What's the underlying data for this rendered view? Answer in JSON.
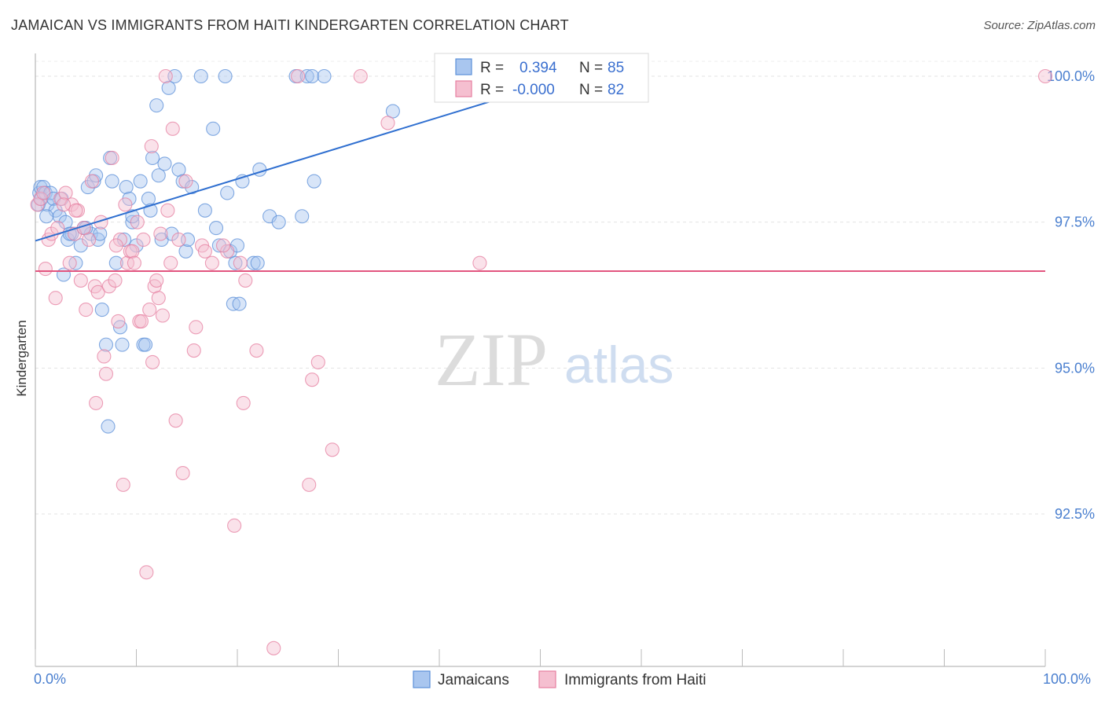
{
  "header": {
    "title": "JAMAICAN VS IMMIGRANTS FROM HAITI KINDERGARTEN CORRELATION CHART",
    "source": "Source: ZipAtlas.com"
  },
  "watermark": {
    "zip": "ZIP",
    "atlas": "atlas"
  },
  "chart_data": {
    "type": "scatter",
    "title": "JAMAICAN VS IMMIGRANTS FROM HAITI KINDERGARTEN CORRELATION CHART",
    "xlabel": "",
    "ylabel": "Kindergarten",
    "xlim": [
      0,
      100
    ],
    "ylim": [
      90.2,
      100.35
    ],
    "x_tick_labels": [
      "0.0%",
      "100.0%"
    ],
    "y_ticks": [
      {
        "value": 100.0,
        "label": "100.0%"
      },
      {
        "value": 97.5,
        "label": "97.5%"
      },
      {
        "value": 95.0,
        "label": "95.0%"
      },
      {
        "value": 92.5,
        "label": "92.5%"
      }
    ],
    "legend": {
      "r_label": "R =",
      "n_label": "N =",
      "entries": [
        {
          "name": "Jamaicans",
          "r": "0.394",
          "n": "85",
          "color": "#5b8fd8",
          "fill": "#a9c6ef"
        },
        {
          "name": "Immigrants from Haiti",
          "r": "-0.000",
          "n": "82",
          "color": "#e67fa0",
          "fill": "#f5bfd0"
        }
      ]
    },
    "series": [
      {
        "name": "Jamaicans",
        "color": "#5b8fd8",
        "fill": "#a9c6ef",
        "trend": {
          "x": [
            0,
            48.5
          ],
          "y": [
            97.18,
            99.75
          ]
        },
        "points": [
          [
            0.4,
            98.0
          ],
          [
            0.5,
            98.1
          ],
          [
            0.6,
            97.9
          ],
          [
            0.8,
            98.1
          ],
          [
            1.0,
            98.0
          ],
          [
            1.2,
            97.8
          ],
          [
            1.5,
            98.0
          ],
          [
            1.8,
            97.9
          ],
          [
            2.0,
            97.7
          ],
          [
            2.4,
            97.6
          ],
          [
            2.6,
            97.9
          ],
          [
            3.0,
            97.5
          ],
          [
            3.2,
            97.2
          ],
          [
            3.6,
            97.3
          ],
          [
            4.0,
            96.8
          ],
          [
            2.8,
            96.6
          ],
          [
            4.5,
            97.1
          ],
          [
            4.8,
            97.4
          ],
          [
            5.2,
            98.1
          ],
          [
            5.5,
            97.3
          ],
          [
            5.8,
            98.2
          ],
          [
            6.0,
            98.3
          ],
          [
            6.2,
            97.2
          ],
          [
            6.4,
            97.3
          ],
          [
            6.6,
            96.0
          ],
          [
            7.0,
            95.4
          ],
          [
            7.4,
            98.6
          ],
          [
            7.6,
            98.2
          ],
          [
            8.0,
            96.8
          ],
          [
            8.4,
            95.7
          ],
          [
            8.6,
            95.4
          ],
          [
            9.0,
            98.1
          ],
          [
            9.3,
            97.9
          ],
          [
            9.6,
            97.5
          ],
          [
            10.0,
            97.1
          ],
          [
            10.4,
            98.2
          ],
          [
            10.7,
            95.4
          ],
          [
            10.9,
            95.4
          ],
          [
            11.2,
            97.9
          ],
          [
            11.4,
            97.7
          ],
          [
            11.6,
            98.6
          ],
          [
            12.0,
            99.5
          ],
          [
            12.2,
            98.3
          ],
          [
            12.5,
            97.2
          ],
          [
            12.8,
            98.5
          ],
          [
            13.2,
            99.8
          ],
          [
            13.8,
            100.0
          ],
          [
            14.2,
            98.4
          ],
          [
            14.6,
            98.2
          ],
          [
            14.9,
            97.0
          ],
          [
            15.1,
            97.2
          ],
          [
            15.5,
            98.1
          ],
          [
            16.4,
            100.0
          ],
          [
            16.8,
            97.7
          ],
          [
            17.6,
            99.1
          ],
          [
            17.9,
            97.4
          ],
          [
            18.2,
            97.1
          ],
          [
            18.8,
            100.0
          ],
          [
            19.3,
            97.0
          ],
          [
            19.6,
            96.1
          ],
          [
            19.8,
            96.8
          ],
          [
            20.0,
            97.1
          ],
          [
            20.2,
            96.1
          ],
          [
            20.5,
            98.2
          ],
          [
            21.6,
            96.8
          ],
          [
            22.2,
            98.4
          ],
          [
            23.2,
            97.6
          ],
          [
            24.1,
            97.5
          ],
          [
            25.8,
            100.0
          ],
          [
            26.4,
            97.6
          ],
          [
            26.9,
            100.0
          ],
          [
            27.4,
            100.0
          ],
          [
            27.6,
            98.2
          ],
          [
            28.6,
            100.0
          ],
          [
            35.4,
            99.4
          ],
          [
            7.2,
            94.0
          ],
          [
            0.3,
            97.8
          ],
          [
            1.1,
            97.6
          ],
          [
            3.4,
            97.3
          ],
          [
            5.0,
            97.4
          ],
          [
            8.8,
            97.2
          ],
          [
            13.5,
            97.3
          ],
          [
            22.0,
            96.8
          ],
          [
            9.6,
            97.6
          ],
          [
            19.0,
            98.0
          ]
        ]
      },
      {
        "name": "Immigrants from Haiti",
        "color": "#e67fa0",
        "fill": "#f5bfd0",
        "trend": {
          "x": [
            0,
            100
          ],
          "y": [
            96.66,
            96.66
          ]
        },
        "points": [
          [
            0.2,
            97.8
          ],
          [
            0.5,
            97.9
          ],
          [
            0.8,
            98.0
          ],
          [
            1.0,
            96.7
          ],
          [
            1.3,
            97.2
          ],
          [
            1.6,
            97.3
          ],
          [
            2.0,
            96.2
          ],
          [
            2.2,
            97.4
          ],
          [
            2.5,
            97.9
          ],
          [
            3.0,
            98.0
          ],
          [
            3.4,
            96.8
          ],
          [
            3.6,
            97.8
          ],
          [
            3.9,
            97.3
          ],
          [
            4.2,
            97.7
          ],
          [
            4.5,
            96.5
          ],
          [
            4.8,
            97.4
          ],
          [
            5.0,
            96.0
          ],
          [
            5.3,
            97.2
          ],
          [
            5.6,
            98.2
          ],
          [
            5.9,
            96.4
          ],
          [
            6.2,
            96.3
          ],
          [
            6.5,
            97.5
          ],
          [
            6.8,
            95.2
          ],
          [
            7.0,
            94.9
          ],
          [
            7.3,
            96.4
          ],
          [
            7.6,
            98.6
          ],
          [
            7.9,
            96.5
          ],
          [
            8.2,
            95.8
          ],
          [
            8.4,
            97.2
          ],
          [
            8.7,
            93.0
          ],
          [
            8.9,
            97.8
          ],
          [
            9.1,
            96.8
          ],
          [
            9.4,
            97.0
          ],
          [
            9.6,
            97.0
          ],
          [
            9.8,
            96.8
          ],
          [
            10.1,
            97.5
          ],
          [
            10.3,
            95.8
          ],
          [
            10.5,
            95.8
          ],
          [
            10.7,
            97.2
          ],
          [
            11.0,
            91.5
          ],
          [
            11.3,
            96.0
          ],
          [
            11.5,
            98.8
          ],
          [
            11.6,
            95.1
          ],
          [
            11.8,
            96.4
          ],
          [
            12.0,
            96.5
          ],
          [
            12.2,
            96.2
          ],
          [
            12.6,
            95.9
          ],
          [
            12.9,
            100.0
          ],
          [
            13.1,
            97.7
          ],
          [
            13.4,
            96.8
          ],
          [
            13.6,
            99.1
          ],
          [
            13.9,
            94.1
          ],
          [
            14.2,
            97.2
          ],
          [
            14.6,
            93.2
          ],
          [
            14.9,
            98.2
          ],
          [
            15.7,
            95.3
          ],
          [
            15.9,
            95.7
          ],
          [
            16.5,
            97.1
          ],
          [
            17.5,
            96.8
          ],
          [
            19.0,
            97.0
          ],
          [
            19.7,
            92.3
          ],
          [
            20.3,
            96.8
          ],
          [
            20.6,
            94.4
          ],
          [
            20.8,
            96.5
          ],
          [
            21.9,
            95.3
          ],
          [
            23.6,
            90.2
          ],
          [
            26.0,
            100.0
          ],
          [
            27.1,
            93.0
          ],
          [
            27.4,
            94.8
          ],
          [
            28.0,
            95.1
          ],
          [
            29.4,
            93.6
          ],
          [
            32.2,
            100.0
          ],
          [
            34.9,
            99.2
          ],
          [
            44.0,
            96.8
          ],
          [
            100.0,
            100.0
          ],
          [
            2.8,
            97.8
          ],
          [
            6.0,
            94.4
          ],
          [
            16.8,
            97.0
          ],
          [
            4.0,
            97.7
          ],
          [
            8.0,
            97.1
          ],
          [
            12.4,
            97.3
          ],
          [
            18.6,
            97.1
          ]
        ]
      }
    ]
  }
}
